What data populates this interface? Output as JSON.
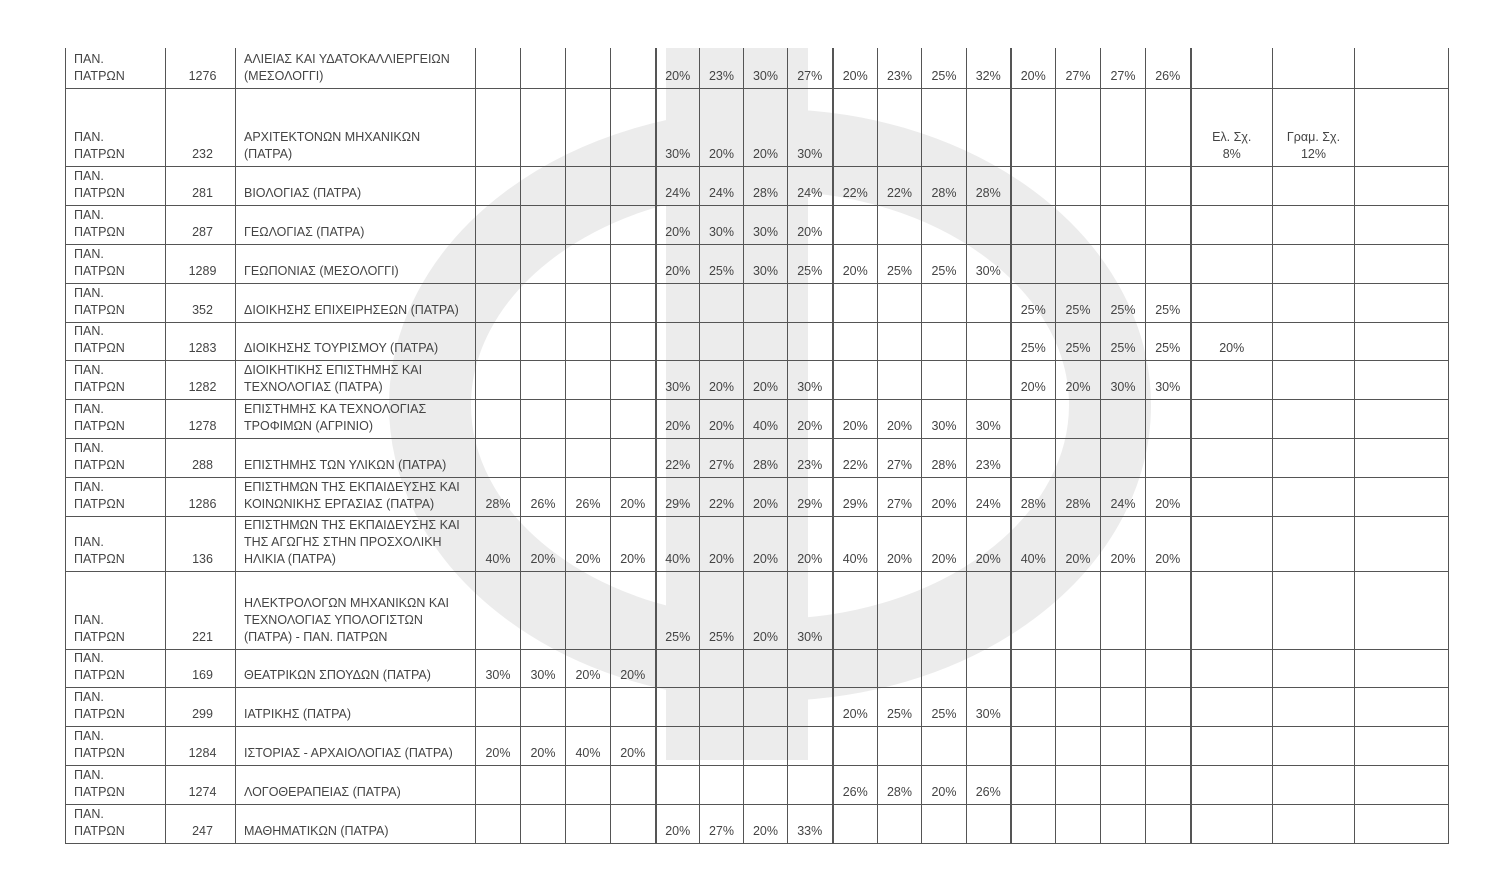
{
  "watermark": {
    "color": "#ececec",
    "shape": "phi-logo"
  },
  "table": {
    "rows": [
      {
        "inst": "ΠΑΝ.\nΠΑΤΡΩΝ",
        "code": "1276",
        "dept": "ΑΛΙΕΙΑΣ ΚΑΙ ΥΔΑΤΟΚΑΛΛΙΕΡΓΕΙΩΝ\n(ΜΕΣΟΛΟΓΓΙ)",
        "cells": [
          "",
          "",
          "",
          "",
          "20%",
          "23%",
          "30%",
          "27%",
          "20%",
          "23%",
          "25%",
          "32%",
          "20%",
          "27%",
          "27%",
          "26%",
          "",
          "",
          ""
        ]
      },
      {
        "inst": "ΠΑΝ.\nΠΑΤΡΩΝ",
        "code": "232",
        "dept": "ΑΡΧΙΤΕΚΤΟΝΩΝ ΜΗΧΑΝΙΚΩΝ\n(ΠΑΤΡΑ)",
        "cells": [
          "",
          "",
          "",
          "",
          "30%",
          "20%",
          "20%",
          "30%",
          "",
          "",
          "",
          "",
          "",
          "",
          "",
          "",
          "Ελ. Σχ.\n8%",
          "Γραμ. Σχ.\n12%",
          ""
        ]
      },
      {
        "inst": "ΠΑΝ.\nΠΑΤΡΩΝ",
        "code": "281",
        "dept": "ΒΙΟΛΟΓΙΑΣ (ΠΑΤΡΑ)",
        "cells": [
          "",
          "",
          "",
          "",
          "24%",
          "24%",
          "28%",
          "24%",
          "22%",
          "22%",
          "28%",
          "28%",
          "",
          "",
          "",
          "",
          "",
          "",
          ""
        ]
      },
      {
        "inst": "ΠΑΝ.\nΠΑΤΡΩΝ",
        "code": "287",
        "dept": "ΓΕΩΛΟΓΙΑΣ (ΠΑΤΡΑ)",
        "cells": [
          "",
          "",
          "",
          "",
          "20%",
          "30%",
          "30%",
          "20%",
          "",
          "",
          "",
          "",
          "",
          "",
          "",
          "",
          "",
          "",
          ""
        ]
      },
      {
        "inst": "ΠΑΝ.\nΠΑΤΡΩΝ",
        "code": "1289",
        "dept": "ΓΕΩΠΟΝΙΑΣ (ΜΕΣΟΛΟΓΓΙ)",
        "cells": [
          "",
          "",
          "",
          "",
          "20%",
          "25%",
          "30%",
          "25%",
          "20%",
          "25%",
          "25%",
          "30%",
          "",
          "",
          "",
          "",
          "",
          "",
          ""
        ]
      },
      {
        "inst": "ΠΑΝ.\nΠΑΤΡΩΝ",
        "code": "352",
        "dept": "ΔΙΟΙΚΗΣΗΣ ΕΠΙΧΕΙΡΗΣΕΩΝ (ΠΑΤΡΑ)",
        "cells": [
          "",
          "",
          "",
          "",
          "",
          "",
          "",
          "",
          "",
          "",
          "",
          "",
          "25%",
          "25%",
          "25%",
          "25%",
          "",
          "",
          ""
        ]
      },
      {
        "inst": "ΠΑΝ.\nΠΑΤΡΩΝ",
        "code": "1283",
        "dept": "ΔΙΟΙΚΗΣΗΣ ΤΟΥΡΙΣΜΟΥ (ΠΑΤΡΑ)",
        "cells": [
          "",
          "",
          "",
          "",
          "",
          "",
          "",
          "",
          "",
          "",
          "",
          "",
          "25%",
          "25%",
          "25%",
          "25%",
          "20%",
          "",
          ""
        ]
      },
      {
        "inst": "ΠΑΝ.\nΠΑΤΡΩΝ",
        "code": "1282",
        "dept": "ΔΙΟΙΚΗΤΙΚΗΣ ΕΠΙΣΤΗΜΗΣ ΚΑΙ\nΤΕΧΝΟΛΟΓΙΑΣ (ΠΑΤΡΑ)",
        "cells": [
          "",
          "",
          "",
          "",
          "30%",
          "20%",
          "20%",
          "30%",
          "",
          "",
          "",
          "",
          "20%",
          "20%",
          "30%",
          "30%",
          "",
          "",
          ""
        ]
      },
      {
        "inst": "ΠΑΝ.\nΠΑΤΡΩΝ",
        "code": "1278",
        "dept": "ΕΠΙΣΤΗΜΗΣ ΚΑ ΤΕΧΝΟΛΟΓΙΑΣ\nΤΡΟΦΙΜΩΝ (ΑΓΡΙΝΙΟ)",
        "cells": [
          "",
          "",
          "",
          "",
          "20%",
          "20%",
          "40%",
          "20%",
          "20%",
          "20%",
          "30%",
          "30%",
          "",
          "",
          "",
          "",
          "",
          "",
          ""
        ]
      },
      {
        "inst": "ΠΑΝ.\nΠΑΤΡΩΝ",
        "code": "288",
        "dept": "ΕΠΙΣΤΗΜΗΣ ΤΩΝ ΥΛΙΚΩΝ (ΠΑΤΡΑ)",
        "cells": [
          "",
          "",
          "",
          "",
          "22%",
          "27%",
          "28%",
          "23%",
          "22%",
          "27%",
          "28%",
          "23%",
          "",
          "",
          "",
          "",
          "",
          "",
          ""
        ]
      },
      {
        "inst": "ΠΑΝ.\nΠΑΤΡΩΝ",
        "code": "1286",
        "dept": "ΕΠΙΣΤΗΜΩΝ ΤΗΣ ΕΚΠΑΙΔΕΥΣΗΣ ΚΑΙ\nΚΟΙΝΩΝΙΚΗΣ ΕΡΓΑΣΙΑΣ (ΠΑΤΡΑ)",
        "cells": [
          "28%",
          "26%",
          "26%",
          "20%",
          "29%",
          "22%",
          "20%",
          "29%",
          "29%",
          "27%",
          "20%",
          "24%",
          "28%",
          "28%",
          "24%",
          "20%",
          "",
          "",
          ""
        ]
      },
      {
        "inst": "ΠΑΝ.\nΠΑΤΡΩΝ",
        "code": "136",
        "dept": "ΕΠΙΣΤΗΜΩΝ ΤΗΣ ΕΚΠΑΙΔΕΥΣΗΣ ΚΑΙ\nΤΗΣ ΑΓΩΓΗΣ ΣΤΗΝ ΠΡΟΣΧΟΛΙΚΗ\nΗΛΙΚΙΑ (ΠΑΤΡΑ)",
        "cells": [
          "40%",
          "20%",
          "20%",
          "20%",
          "40%",
          "20%",
          "20%",
          "20%",
          "40%",
          "20%",
          "20%",
          "20%",
          "40%",
          "20%",
          "20%",
          "20%",
          "",
          "",
          ""
        ]
      },
      {
        "inst": "ΠΑΝ.\nΠΑΤΡΩΝ",
        "code": "221",
        "dept": "ΗΛΕΚΤΡΟΛΟΓΩΝ ΜΗΧΑΝΙΚΩΝ ΚΑΙ\nΤΕΧΝΟΛΟΓΙΑΣ ΥΠΟΛΟΓΙΣΤΩΝ\n(ΠΑΤΡΑ) - ΠΑΝ. ΠΑΤΡΩΝ",
        "cells": [
          "",
          "",
          "",
          "",
          "25%",
          "25%",
          "20%",
          "30%",
          "",
          "",
          "",
          "",
          "",
          "",
          "",
          "",
          "",
          "",
          ""
        ]
      },
      {
        "inst": "ΠΑΝ.\nΠΑΤΡΩΝ",
        "code": "169",
        "dept": "ΘΕΑΤΡΙΚΩΝ ΣΠΟΥΔΩΝ (ΠΑΤΡΑ)",
        "cells": [
          "30%",
          "30%",
          "20%",
          "20%",
          "",
          "",
          "",
          "",
          "",
          "",
          "",
          "",
          "",
          "",
          "",
          "",
          "",
          "",
          ""
        ]
      },
      {
        "inst": "ΠΑΝ.\nΠΑΤΡΩΝ",
        "code": "299",
        "dept": "ΙΑΤΡΙΚΗΣ (ΠΑΤΡΑ)",
        "cells": [
          "",
          "",
          "",
          "",
          "",
          "",
          "",
          "",
          "20%",
          "25%",
          "25%",
          "30%",
          "",
          "",
          "",
          "",
          "",
          "",
          ""
        ]
      },
      {
        "inst": "ΠΑΝ.\nΠΑΤΡΩΝ",
        "code": "1284",
        "dept": "ΙΣΤΟΡΙΑΣ - ΑΡΧΑΙΟΛΟΓΙΑΣ (ΠΑΤΡΑ)",
        "cells": [
          "20%",
          "20%",
          "40%",
          "20%",
          "",
          "",
          "",
          "",
          "",
          "",
          "",
          "",
          "",
          "",
          "",
          "",
          "",
          "",
          ""
        ]
      },
      {
        "inst": "ΠΑΝ.\nΠΑΤΡΩΝ",
        "code": "1274",
        "dept": "ΛΟΓΟΘΕΡΑΠΕΙΑΣ (ΠΑΤΡΑ)",
        "cells": [
          "",
          "",
          "",
          "",
          "",
          "",
          "",
          "",
          "26%",
          "28%",
          "20%",
          "26%",
          "",
          "",
          "",
          "",
          "",
          "",
          ""
        ]
      },
      {
        "inst": "ΠΑΝ.\nΠΑΤΡΩΝ",
        "code": "247",
        "dept": "ΜΑΘΗΜΑΤΙΚΩΝ (ΠΑΤΡΑ)",
        "cells": [
          "",
          "",
          "",
          "",
          "20%",
          "27%",
          "20%",
          "33%",
          "",
          "",
          "",
          "",
          "",
          "",
          "",
          "",
          "",
          "",
          ""
        ]
      }
    ]
  }
}
